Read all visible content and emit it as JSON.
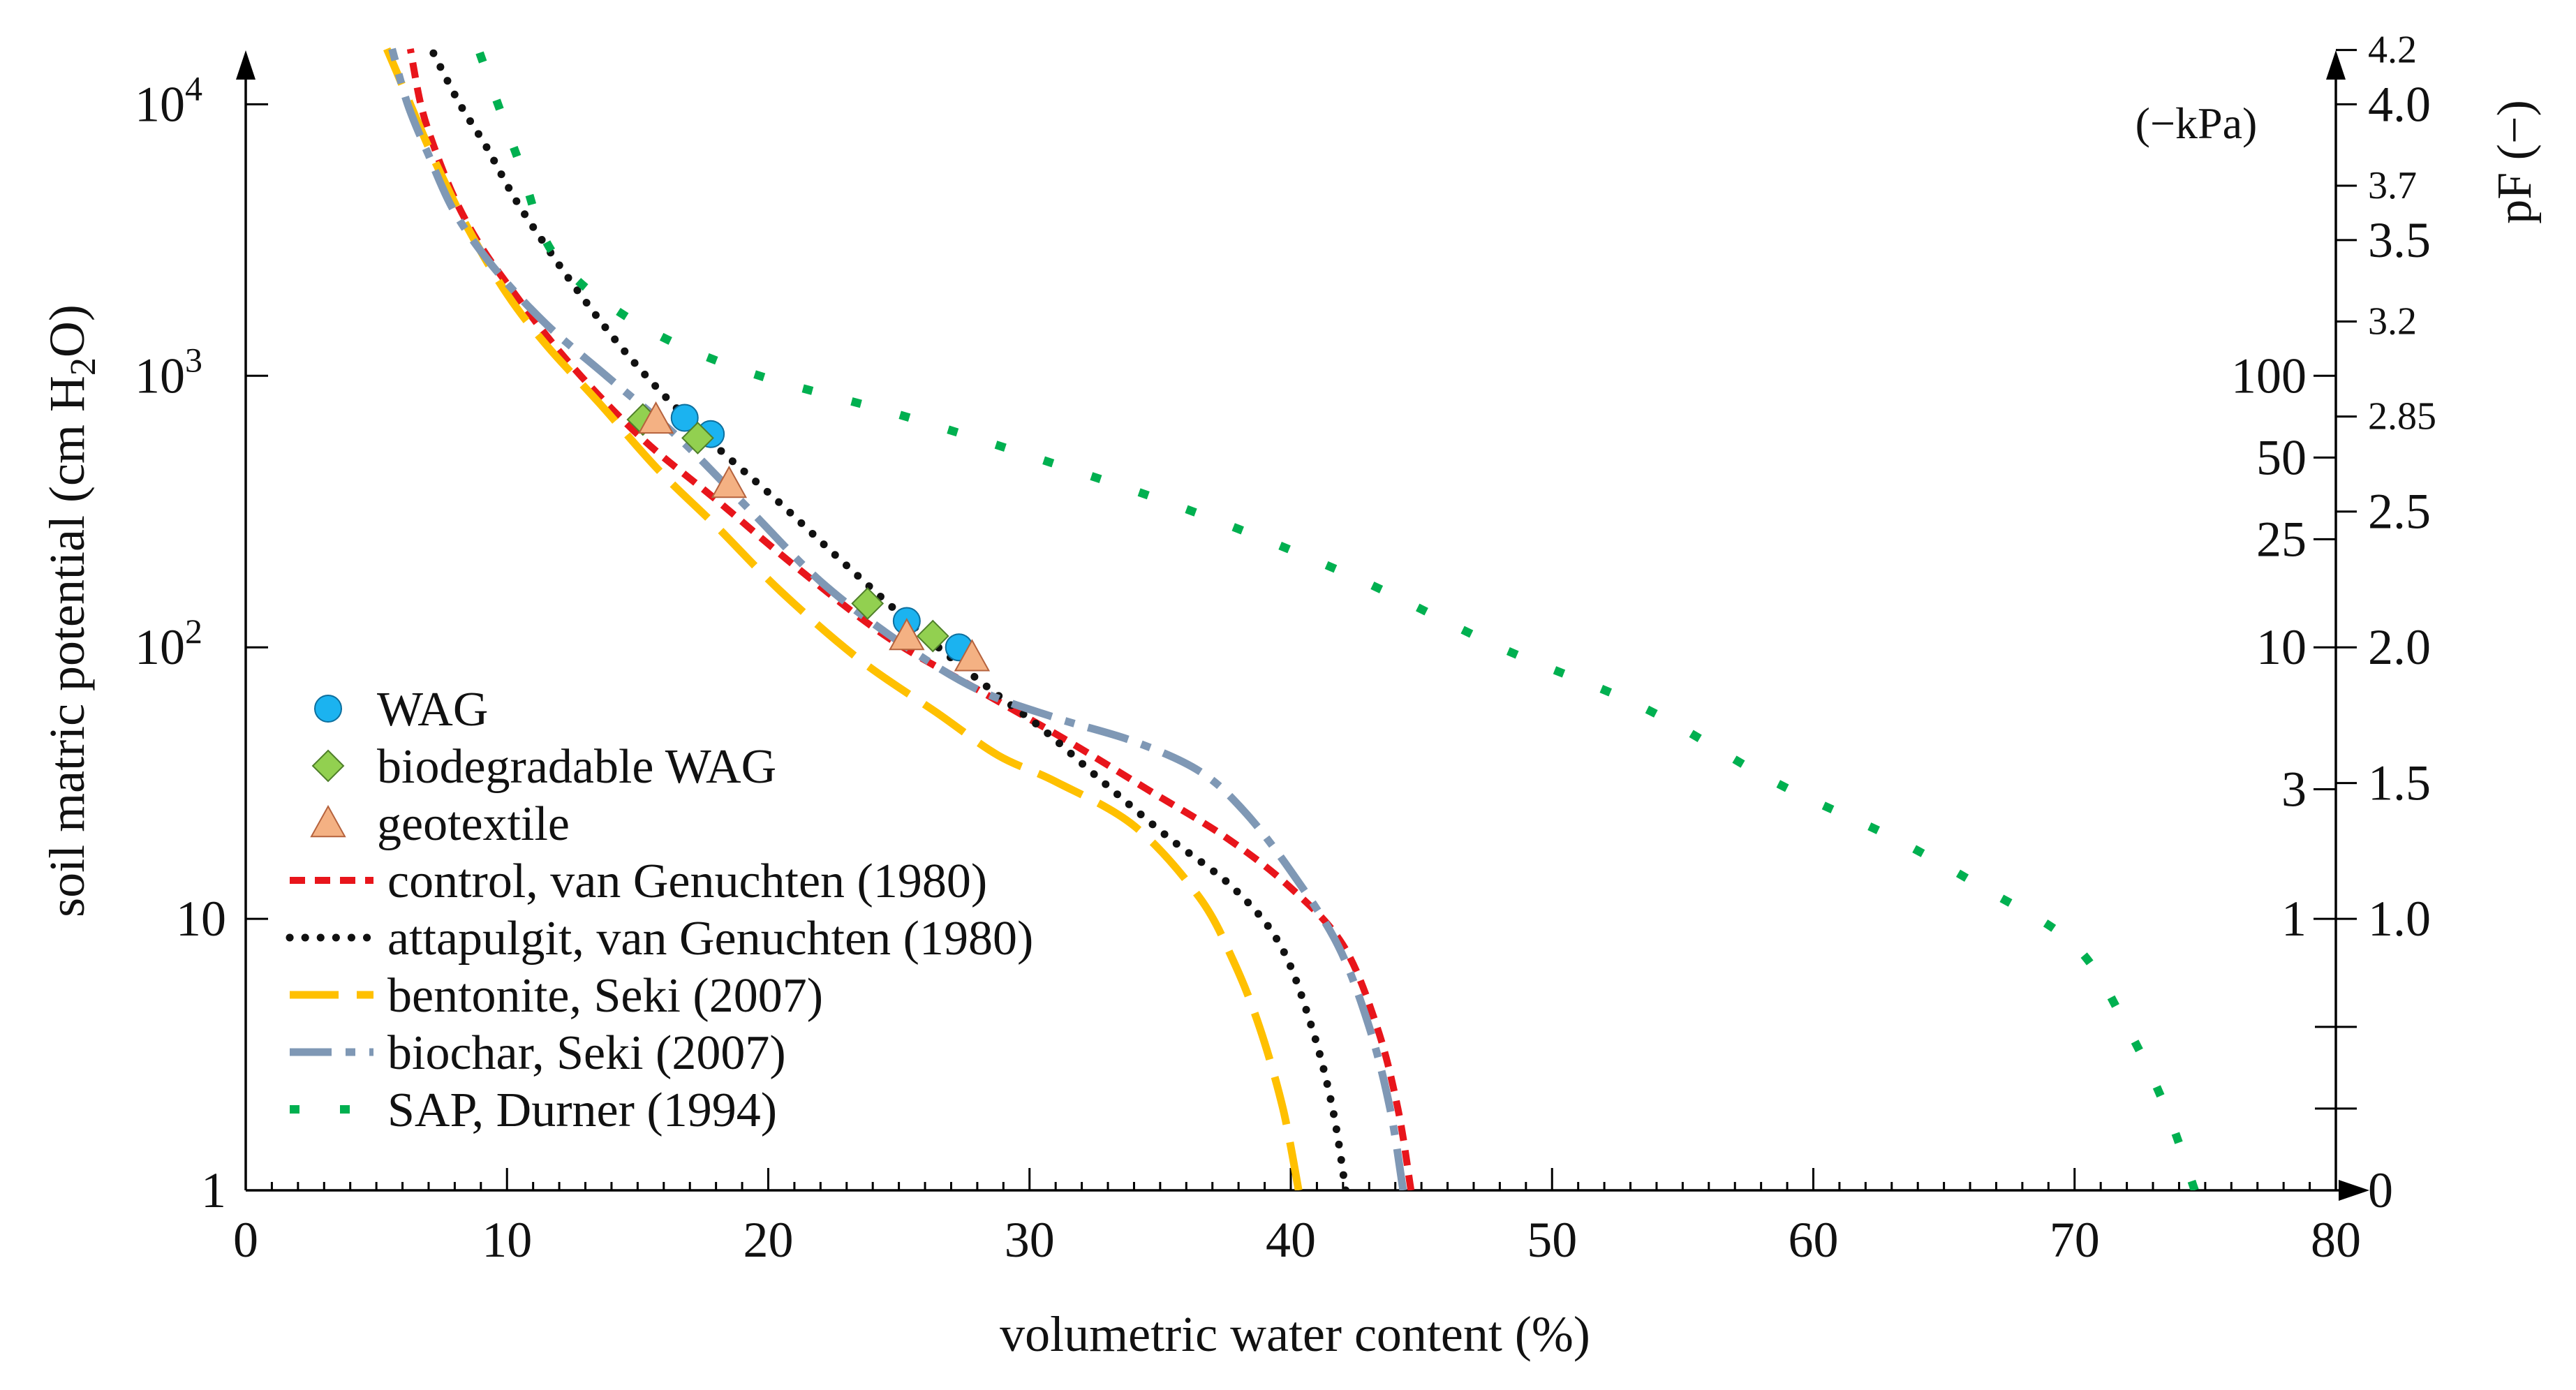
{
  "chart_data": {
    "type": "line",
    "xlabel": "volumetric water content (%)",
    "ylabel": "soil matric potential (cm H2O)",
    "ylabel_parts": [
      "soil matric potential (cm H",
      "2",
      "O)"
    ],
    "xlim": [
      0,
      80
    ],
    "ylim": [
      1,
      16000
    ],
    "yscale": "log",
    "x_ticks": [
      0,
      10,
      20,
      30,
      40,
      50,
      60,
      70,
      80
    ],
    "x_tick_labels": [
      "0",
      "10",
      "20",
      "30",
      "40",
      "50",
      "60",
      "70",
      "80"
    ],
    "y_ticks_left": [
      {
        "value": 1,
        "label": "1"
      },
      {
        "value": 10,
        "label": "10"
      },
      {
        "value": 100,
        "base": "10",
        "exp": "2"
      },
      {
        "value": 1000,
        "base": "10",
        "exp": "3"
      },
      {
        "value": 10000,
        "base": "10",
        "exp": "4"
      }
    ],
    "right_axis_kpa_title": "(−kPa)",
    "right_axis_kpa": [
      {
        "cm": 10,
        "label": "1"
      },
      {
        "cm": 30,
        "label": "3"
      },
      {
        "cm": 100,
        "label": "10"
      },
      {
        "cm": 250,
        "label": "25"
      },
      {
        "cm": 500,
        "label": "50"
      },
      {
        "cm": 1000,
        "label": "100"
      }
    ],
    "right_axis_pf_title": "pF (−)",
    "right_axis_pf": [
      {
        "pf": 0,
        "label": "0",
        "size": "large"
      },
      {
        "pf": 1.0,
        "label": "1.0",
        "size": "large"
      },
      {
        "pf": 1.5,
        "label": "1.5",
        "size": "large"
      },
      {
        "pf": 2.0,
        "label": "2.0",
        "size": "large"
      },
      {
        "pf": 2.5,
        "label": "2.5",
        "size": "large"
      },
      {
        "pf": 2.85,
        "label": "2.85",
        "size": "small"
      },
      {
        "pf": 3.2,
        "label": "3.2",
        "size": "small"
      },
      {
        "pf": 3.5,
        "label": "3.5",
        "size": "large"
      },
      {
        "pf": 3.7,
        "label": "3.7",
        "size": "small"
      },
      {
        "pf": 4.0,
        "label": "4.0",
        "size": "large"
      },
      {
        "pf": 4.2,
        "label": "4.2",
        "size": "small"
      }
    ],
    "series": [
      {
        "name": "control, van Genuchten (1980)",
        "kind": "line",
        "style": "dashed",
        "color": "#e8151b",
        "points": [
          [
            44.6,
            1
          ],
          [
            44.1,
            2
          ],
          [
            43.3,
            4
          ],
          [
            42.0,
            8
          ],
          [
            40.0,
            13
          ],
          [
            37.5,
            20
          ],
          [
            34.5,
            30
          ],
          [
            31.5,
            45
          ],
          [
            28.0,
            70
          ],
          [
            24.5,
            110
          ],
          [
            21.0,
            200
          ],
          [
            18.0,
            350
          ],
          [
            15.5,
            550
          ],
          [
            13.5,
            850
          ],
          [
            11.8,
            1300
          ],
          [
            10.3,
            2000
          ],
          [
            9.0,
            3000
          ],
          [
            8.0,
            4500
          ],
          [
            7.2,
            7000
          ],
          [
            6.7,
            10000
          ],
          [
            6.3,
            16000
          ]
        ]
      },
      {
        "name": "attapulgit, van Genuchten (1980)",
        "kind": "line",
        "style": "dotted",
        "color": "#111111",
        "points": [
          [
            42.1,
            1
          ],
          [
            41.6,
            2
          ],
          [
            40.8,
            4
          ],
          [
            39.6,
            8
          ],
          [
            37.8,
            13
          ],
          [
            35.3,
            20
          ],
          [
            32.8,
            32
          ],
          [
            30.5,
            50
          ],
          [
            28.5,
            70
          ],
          [
            26.0,
            110
          ],
          [
            23.0,
            200
          ],
          [
            20.3,
            350
          ],
          [
            18.0,
            550
          ],
          [
            16.0,
            850
          ],
          [
            14.3,
            1300
          ],
          [
            12.8,
            2000
          ],
          [
            11.5,
            3000
          ],
          [
            10.3,
            4500
          ],
          [
            9.2,
            7000
          ],
          [
            8.2,
            10000
          ],
          [
            7.1,
            16000
          ]
        ]
      },
      {
        "name": "bentonite, Seki (2007)",
        "kind": "line",
        "style": "longdash",
        "color": "#ffc000",
        "points": [
          [
            40.3,
            1
          ],
          [
            39.7,
            2
          ],
          [
            38.8,
            4
          ],
          [
            37.8,
            7
          ],
          [
            36.5,
            12
          ],
          [
            34.0,
            22
          ],
          [
            31.0,
            32
          ],
          [
            28.8,
            40
          ],
          [
            26.5,
            57
          ],
          [
            23.5,
            90
          ],
          [
            20.5,
            160
          ],
          [
            18.0,
            280
          ],
          [
            15.8,
            450
          ],
          [
            13.5,
            800
          ],
          [
            11.5,
            1300
          ],
          [
            10.0,
            2000
          ],
          [
            8.5,
            3500
          ],
          [
            7.3,
            6000
          ],
          [
            6.5,
            9000
          ],
          [
            5.8,
            13000
          ],
          [
            5.4,
            16000
          ]
        ]
      },
      {
        "name": "biochar, Seki (2007)",
        "kind": "line",
        "style": "dashdot",
        "color": "#7f98b5",
        "points": [
          [
            44.3,
            1
          ],
          [
            43.8,
            2
          ],
          [
            43.0,
            4
          ],
          [
            41.8,
            8
          ],
          [
            40.0,
            15
          ],
          [
            38.2,
            25
          ],
          [
            36.5,
            35
          ],
          [
            34.0,
            45
          ],
          [
            31.0,
            55
          ],
          [
            28.0,
            70
          ],
          [
            25.0,
            105
          ],
          [
            22.0,
            175
          ],
          [
            19.3,
            320
          ],
          [
            16.5,
            600
          ],
          [
            13.8,
            1000
          ],
          [
            11.5,
            1550
          ],
          [
            9.5,
            2500
          ],
          [
            8.0,
            4000
          ],
          [
            7.0,
            6500
          ],
          [
            6.2,
            10000
          ],
          [
            5.6,
            16000
          ]
        ]
      },
      {
        "name": "SAP, Durner (1994)",
        "kind": "line",
        "style": "sparse",
        "color": "#00b050",
        "points": [
          [
            74.6,
            1
          ],
          [
            73.5,
            2
          ],
          [
            72.0,
            4
          ],
          [
            70.0,
            8
          ],
          [
            66.5,
            13
          ],
          [
            63.0,
            20
          ],
          [
            58.5,
            32
          ],
          [
            53.5,
            60
          ],
          [
            48.0,
            100
          ],
          [
            42.5,
            180
          ],
          [
            36.5,
            310
          ],
          [
            30.5,
            490
          ],
          [
            25.0,
            720
          ],
          [
            19.0,
            1050
          ],
          [
            14.8,
            1600
          ],
          [
            11.8,
            2800
          ],
          [
            10.5,
            6000
          ],
          [
            9.5,
            11000
          ],
          [
            8.9,
            16000
          ]
        ]
      },
      {
        "name": "WAG",
        "kind": "marker",
        "marker": "circle",
        "color": "#1bb3f0",
        "points": [
          [
            16.8,
            700
          ],
          [
            17.8,
            610
          ],
          [
            25.3,
            125
          ],
          [
            27.3,
            100
          ]
        ]
      },
      {
        "name": "biodegradable WAG",
        "kind": "marker",
        "marker": "diamond",
        "color": "#92d050",
        "points": [
          [
            15.2,
            690
          ],
          [
            17.3,
            590
          ],
          [
            23.8,
            145
          ],
          [
            26.3,
            110
          ]
        ]
      },
      {
        "name": "geotextile",
        "kind": "marker",
        "marker": "triangle",
        "color": "#f4b183",
        "points": [
          [
            15.7,
            690
          ],
          [
            18.5,
            400
          ],
          [
            25.3,
            110
          ],
          [
            27.8,
            92
          ]
        ]
      }
    ],
    "legend_order": [
      "WAG",
      "biodegradable WAG",
      "geotextile",
      "control, van Genuchten (1980)",
      "attapulgit, van Genuchten (1980)",
      "bentonite, Seki (2007)",
      "biochar, Seki (2007)",
      "SAP, Durner (1994)"
    ],
    "legend_position": "bottom-left"
  }
}
